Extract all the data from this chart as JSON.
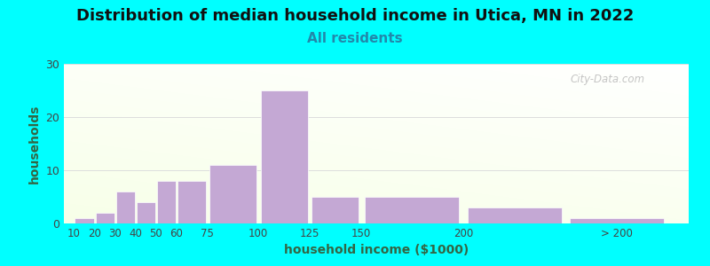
{
  "title": "Distribution of median household income in Utica, MN in 2022",
  "subtitle": "All residents",
  "xlabel": "household income ($1000)",
  "ylabel": "households",
  "background_outer": "#00FFFF",
  "bar_color": "#C4A8D4",
  "grid_color": "#DDDDDD",
  "title_fontsize": 13,
  "subtitle_fontsize": 11,
  "subtitle_color": "#2288AA",
  "ylabel_color": "#336644",
  "xlabel_color": "#336644",
  "ylim": [
    0,
    30
  ],
  "yticks": [
    0,
    10,
    20,
    30
  ],
  "bar_lefts": [
    10,
    20,
    30,
    40,
    50,
    60,
    75,
    100,
    125,
    150,
    200,
    250
  ],
  "bar_widths": [
    10,
    10,
    10,
    10,
    10,
    15,
    25,
    25,
    25,
    50,
    50,
    50
  ],
  "bar_heights": [
    1,
    2,
    6,
    4,
    8,
    8,
    11,
    25,
    5,
    5,
    3,
    1
  ],
  "xtick_positions": [
    10,
    20,
    30,
    40,
    50,
    60,
    75,
    100,
    125,
    150,
    200,
    275
  ],
  "xtick_labels": [
    "10",
    "20",
    "30",
    "40",
    "50",
    "60",
    "75",
    "100",
    "125",
    "150",
    "200",
    "> 200"
  ],
  "watermark": "City-Data.com"
}
